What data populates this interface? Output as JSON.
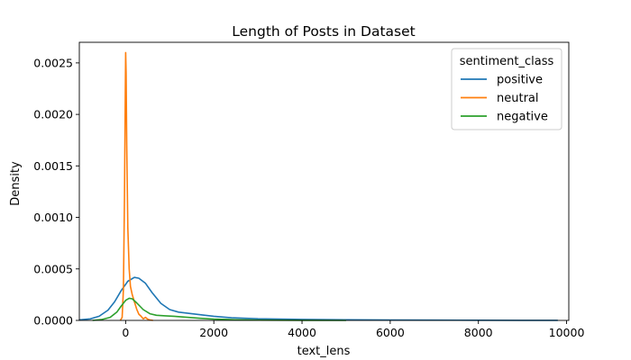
{
  "chart_data": {
    "type": "line",
    "title": "Length of Posts in Dataset",
    "xlabel": "text_lens",
    "ylabel": "Density",
    "xlim": [
      -1050,
      10050
    ],
    "ylim": [
      0,
      0.0027
    ],
    "x_ticks": [
      0,
      2000,
      4000,
      6000,
      8000,
      10000
    ],
    "x_tick_labels": [
      "0",
      "2000",
      "4000",
      "6000",
      "8000",
      "10000"
    ],
    "y_ticks": [
      0,
      0.0005,
      0.001,
      0.0015,
      0.002,
      0.0025
    ],
    "y_tick_labels": [
      "0.0000",
      "0.0005",
      "0.0010",
      "0.0015",
      "0.0020",
      "0.0025"
    ],
    "grid": false,
    "legend": {
      "title": "sentiment_class",
      "placement": "top-right"
    },
    "series": [
      {
        "name": "positive",
        "color": "#1f77b4",
        "points": [
          [
            -1050,
            5e-06
          ],
          [
            -800,
            1.5e-05
          ],
          [
            -600,
            4e-05
          ],
          [
            -400,
            0.0001
          ],
          [
            -250,
            0.00018
          ],
          [
            -100,
            0.00029
          ],
          [
            50,
            0.00038
          ],
          [
            200,
            0.000418
          ],
          [
            300,
            0.00041
          ],
          [
            450,
            0.00036
          ],
          [
            600,
            0.00027
          ],
          [
            800,
            0.000165
          ],
          [
            1000,
            0.000105
          ],
          [
            1200,
            8e-05
          ],
          [
            1500,
            6.5e-05
          ],
          [
            1800,
            5e-05
          ],
          [
            2000,
            4e-05
          ],
          [
            2400,
            2.5e-05
          ],
          [
            3000,
            1.6e-05
          ],
          [
            4000,
            1e-05
          ],
          [
            5000,
            6e-06
          ],
          [
            6000,
            4e-06
          ],
          [
            7000,
            3e-06
          ],
          [
            8000,
            2e-06
          ],
          [
            9000,
            1e-06
          ],
          [
            9800,
            5e-07
          ]
        ]
      },
      {
        "name": "neutral",
        "color": "#ff7f0e",
        "points": [
          [
            -120,
            0.0
          ],
          [
            -80,
            3e-05
          ],
          [
            -50,
            0.0003
          ],
          [
            -25,
            0.0012
          ],
          [
            -8,
            0.0022
          ],
          [
            0,
            0.0026
          ],
          [
            10,
            0.0024
          ],
          [
            25,
            0.0017
          ],
          [
            50,
            0.0009
          ],
          [
            80,
            0.0005
          ],
          [
            110,
            0.00033
          ],
          [
            150,
            0.00025
          ],
          [
            200,
            0.00018
          ],
          [
            250,
            0.00011
          ],
          [
            300,
            6e-05
          ],
          [
            350,
            4e-05
          ],
          [
            400,
            1.5e-05
          ],
          [
            450,
            3e-05
          ],
          [
            500,
            1.2e-05
          ],
          [
            550,
            4e-06
          ],
          [
            620,
            0.0
          ]
        ]
      },
      {
        "name": "negative",
        "color": "#2ca02c",
        "points": [
          [
            -750,
            0.0
          ],
          [
            -550,
            8e-06
          ],
          [
            -350,
            3e-05
          ],
          [
            -200,
            8e-05
          ],
          [
            -100,
            0.00014
          ],
          [
            0,
            0.000195
          ],
          [
            80,
            0.000215
          ],
          [
            150,
            0.00021
          ],
          [
            250,
            0.00017
          ],
          [
            400,
            0.000105
          ],
          [
            550,
            6.5e-05
          ],
          [
            700,
            5e-05
          ],
          [
            900,
            4.5e-05
          ],
          [
            1100,
            4e-05
          ],
          [
            1400,
            3e-05
          ],
          [
            1700,
            2e-05
          ],
          [
            2000,
            1.2e-05
          ],
          [
            2500,
            6e-06
          ],
          [
            3000,
            3e-06
          ],
          [
            4000,
            1e-06
          ],
          [
            5000,
            0.0
          ]
        ]
      }
    ]
  }
}
